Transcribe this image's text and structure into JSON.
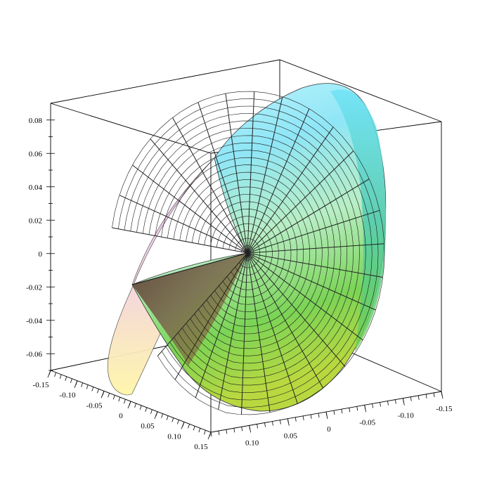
{
  "chart_data": {
    "type": "surface3d",
    "title": "",
    "axes": {
      "z": {
        "range": [
          -0.07,
          0.09
        ],
        "ticks": [
          "0.08",
          "0.06",
          "0.04",
          "0.02",
          "0",
          "-0.02",
          "-0.04",
          "-0.06"
        ]
      },
      "x": {
        "range": [
          -0.15,
          0.15
        ],
        "ticks": [
          "-0.15",
          "-0.10",
          "-0.05",
          "0",
          "0.05",
          "0.10",
          "0.15"
        ]
      },
      "y": {
        "range": [
          -0.15,
          0.15
        ],
        "ticks": [
          "0.10",
          "0.05",
          "0",
          "-0.05",
          "-0.10",
          "-0.15"
        ]
      }
    },
    "surface": {
      "description_shape": "spiral / conical sheet with mesh grid",
      "colormap": [
        "#f7e96a",
        "#c8e04a",
        "#7ad44e",
        "#6fd6c9",
        "#7fe6f6",
        "#e9b6f0"
      ]
    },
    "grid": true,
    "legend": "none"
  }
}
